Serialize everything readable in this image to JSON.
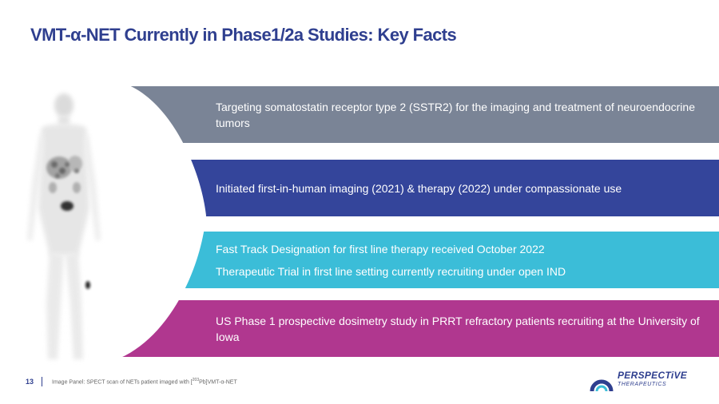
{
  "title": "VMT-α-NET Currently in Phase1/2a Studies: Key Facts",
  "bands": [
    {
      "color": "#7a8496",
      "lines": [
        "Targeting somatostatin receptor type 2 (SSTR2) for the imaging and treatment of neuroendocrine tumors"
      ]
    },
    {
      "color": "#34459b",
      "lines": [
        "Initiated first-in-human imaging (2021) & therapy (2022) under compassionate use"
      ]
    },
    {
      "color": "#3bbdd8",
      "lines": [
        "Fast Track Designation for first line therapy received October 2022",
        "Therapeutic Trial in first line setting currently recruiting under open IND"
      ]
    },
    {
      "color": "#b0378f",
      "lines": [
        "US Phase 1 prospective dosimetry study in PRRT refractory patients recruiting at the University of Iowa"
      ]
    }
  ],
  "footer": {
    "page_number": "13",
    "caption_prefix": "Image Panel: SPECT scan of NETs patient imaged with [",
    "caption_sup": "203",
    "caption_suffix": "Pb]VMT-α-NET"
  },
  "logo": {
    "name": "PERSPECTiVE",
    "subtitle": "THERAPEUTICS",
    "ring_color": "#2f3f8f",
    "accent_color": "#3bbdd8"
  }
}
